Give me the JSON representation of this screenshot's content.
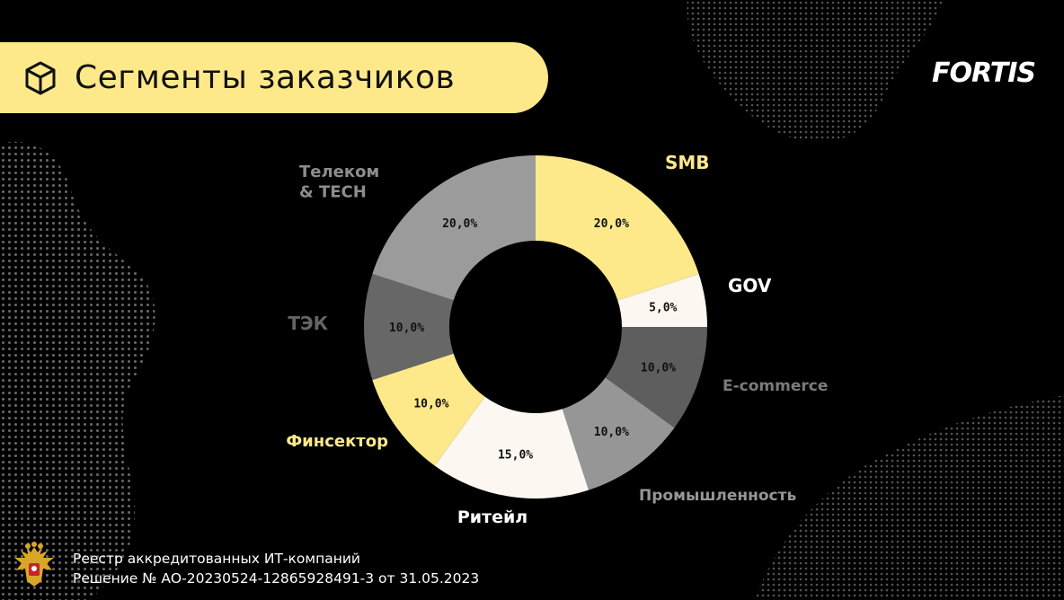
{
  "header": {
    "title": "Сегменты заказчиков",
    "icon": "cube-icon",
    "accent": "#fde98a"
  },
  "brand": {
    "logo_text": "FORTIS"
  },
  "chart_data": {
    "type": "pie",
    "variant": "donut",
    "start_angle_deg": 0,
    "direction": "clockwise",
    "slices": [
      {
        "label": "SMB",
        "value": 20.0,
        "value_label": "20,0%",
        "color": "#fde98a",
        "label_color": "#fde98a"
      },
      {
        "label": "GOV",
        "value": 5.0,
        "value_label": "5,0%",
        "color": "#fcf8f1",
        "label_color": "#ffffff"
      },
      {
        "label": "E-commerce",
        "value": 10.0,
        "value_label": "10,0%",
        "color": "#5e5e5e",
        "label_color": "#7b7b7b"
      },
      {
        "label": "Промышленность",
        "value": 10.0,
        "value_label": "10,0%",
        "color": "#969696",
        "label_color": "#969696"
      },
      {
        "label": "Ритейл",
        "value": 15.0,
        "value_label": "15,0%",
        "color": "#fcf8f1",
        "label_color": "#ffffff"
      },
      {
        "label": "Финсектор",
        "value": 10.0,
        "value_label": "10,0%",
        "color": "#fde98a",
        "label_color": "#fde98a"
      },
      {
        "label": "ТЭК",
        "value": 10.0,
        "value_label": "10,0%",
        "color": "#676767",
        "label_color": "#646464"
      },
      {
        "label": "Телеком\n& TECH",
        "value": 20.0,
        "value_label": "20,0%",
        "color": "#9b9b9b",
        "label_color": "#8d8d8d"
      }
    ],
    "legend": "none"
  },
  "footer": {
    "emblem": "coat-of-arms-icon",
    "line1": "Реестр аккредитованных ИТ-компаний",
    "line2": "Решение № АО-20230524-12865928491-3 от 31.05.2023"
  }
}
